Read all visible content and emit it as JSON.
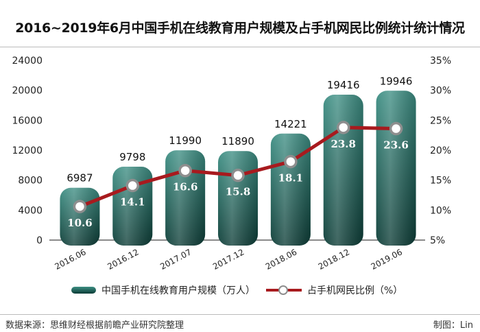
{
  "title": "2016~2019年6月中国手机在线教育用户规模及占手机网民比例统计统计情况",
  "footer": {
    "source": "数据来源：思维财经根据前瞻产业研究院整理",
    "credit": "制图：Lin"
  },
  "colors": {
    "bar_top": "#3e8f84",
    "bar_bottom": "#0c3c36",
    "line": "#a81a1e",
    "marker_fill": "#ffffff",
    "marker_stroke": "#8e8e8e",
    "percent_label": "#ffffff"
  },
  "chart_data": {
    "type": "bar",
    "categories": [
      "2016.06",
      "2016.12",
      "2017.07",
      "2017.12",
      "2018.06",
      "2018.12",
      "2019.06"
    ],
    "series": [
      {
        "name": "中国手机在线教育用户规模（万人）",
        "type": "bar",
        "axis": "left",
        "values": [
          6987,
          9798,
          11990,
          11890,
          14221,
          19416,
          19946
        ]
      },
      {
        "name": "占手机网民比例（%）",
        "type": "line",
        "axis": "right",
        "values": [
          10.6,
          14.1,
          16.6,
          15.8,
          18.1,
          23.8,
          23.6
        ]
      }
    ],
    "left_axis": {
      "ylim": [
        0,
        24000
      ],
      "ticks": [
        "0",
        "4000",
        "8000",
        "12000",
        "16000",
        "20000",
        "24000"
      ]
    },
    "right_axis": {
      "ylim": [
        5,
        35
      ],
      "ticks": [
        "5%",
        "10%",
        "15%",
        "20%",
        "25%",
        "30%",
        "35%"
      ]
    },
    "grid": false,
    "legend_position": "bottom"
  }
}
